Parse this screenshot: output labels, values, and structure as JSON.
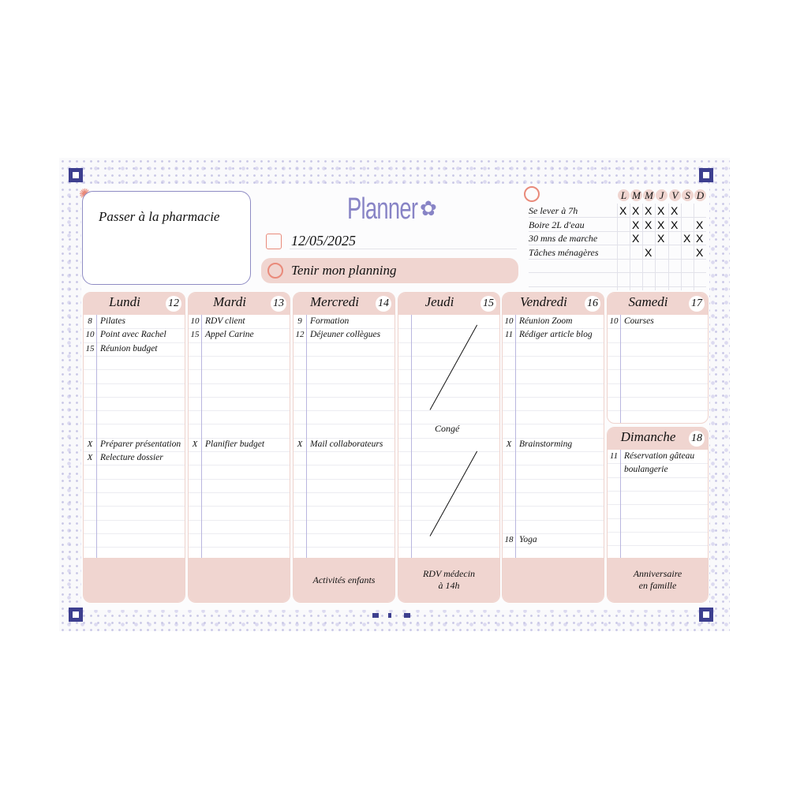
{
  "title": "Planner",
  "note": "Passer à la pharmacie",
  "date": "12/05/2025",
  "goal": "Tenir mon planning",
  "colors": {
    "accent": "#8884c6",
    "pink": "#f0d5d0",
    "coral": "#e98a7a",
    "navy": "#3d3f8f"
  },
  "tracker": {
    "days": [
      "L",
      "M",
      "M",
      "J",
      "V",
      "S",
      "D"
    ],
    "mark": "X",
    "habits": [
      {
        "label": "Se lever à 7h",
        "done": [
          true,
          true,
          true,
          true,
          true,
          false,
          false
        ]
      },
      {
        "label": "Boire 2L d'eau",
        "done": [
          false,
          true,
          true,
          true,
          true,
          false,
          true
        ]
      },
      {
        "label": "30 mns de marche",
        "done": [
          false,
          true,
          false,
          true,
          false,
          true,
          true
        ]
      },
      {
        "label": "Tâches ménagères",
        "done": [
          false,
          false,
          true,
          false,
          false,
          false,
          true
        ]
      }
    ]
  },
  "days": [
    {
      "name": "Lundi",
      "num": "12",
      "events": [
        {
          "t": "8",
          "x": "Pilates"
        },
        {
          "t": "10",
          "x": "Point avec Rachel"
        },
        {
          "t": "15",
          "x": "Réunion budget"
        }
      ],
      "tasks": [
        {
          "t": "X",
          "x": "Préparer présentation"
        },
        {
          "t": "X",
          "x": "Relecture dossier"
        }
      ],
      "evening": [],
      "foot": ""
    },
    {
      "name": "Mardi",
      "num": "13",
      "events": [
        {
          "t": "10",
          "x": "RDV client"
        },
        {
          "t": "15",
          "x": "Appel Carine"
        }
      ],
      "tasks": [
        {
          "t": "X",
          "x": "Planifier budget"
        }
      ],
      "evening": [],
      "foot": ""
    },
    {
      "name": "Mercredi",
      "num": "14",
      "events": [
        {
          "t": "9",
          "x": "Formation"
        },
        {
          "t": "12",
          "x": "Déjeuner collègues"
        }
      ],
      "tasks": [
        {
          "t": "X",
          "x": "Mail collaborateurs"
        }
      ],
      "evening": [],
      "foot": "Activités enfants"
    },
    {
      "name": "Jeudi",
      "num": "15",
      "events": [],
      "tasks": [],
      "evening": [],
      "off": "Congé",
      "foot": "RDV médecin\nà 14h"
    },
    {
      "name": "Vendredi",
      "num": "16",
      "events": [
        {
          "t": "10",
          "x": "Réunion Zoom"
        },
        {
          "t": "11",
          "x": "Rédiger article blog"
        }
      ],
      "tasks": [
        {
          "t": "X",
          "x": "Brainstorming"
        }
      ],
      "evening": [
        {
          "t": "18",
          "x": "Yoga"
        }
      ],
      "foot": ""
    },
    {
      "name": "Samedi",
      "num": "17",
      "events": [
        {
          "t": "10",
          "x": "Courses"
        }
      ],
      "tasks": [],
      "evening": []
    },
    {
      "name": "Dimanche",
      "num": "18",
      "events": [
        {
          "t": "11",
          "x": "Réservation gâteau"
        },
        {
          "t": "",
          "x": "boulangerie"
        }
      ],
      "tasks": [],
      "evening": [],
      "foot": "Anniversaire\nen famille"
    }
  ]
}
